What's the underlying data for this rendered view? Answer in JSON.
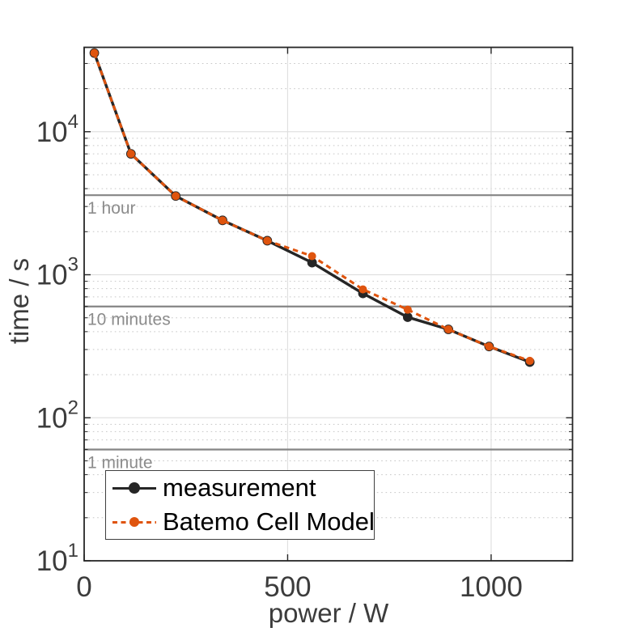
{
  "axes": {
    "xlabel": "power / W",
    "ylabel": "time / s",
    "xlim": [
      0,
      1200
    ],
    "ylim": [
      10,
      38900
    ],
    "yscale": "log",
    "x_ticks": [
      {
        "value": 0,
        "label": "0"
      },
      {
        "value": 500,
        "label": "500"
      },
      {
        "value": 1000,
        "label": "1000"
      }
    ],
    "y_ticks": [
      {
        "value": 10,
        "base": "10",
        "exp": "1"
      },
      {
        "value": 100,
        "base": "10",
        "exp": "2"
      },
      {
        "value": 1000,
        "base": "10",
        "exp": "3"
      },
      {
        "value": 10000,
        "base": "10",
        "exp": "4"
      }
    ],
    "colors": {
      "frame": "#262626",
      "tick_label": "#3c3c3c",
      "grid_major": "#e0e0e0",
      "grid_minor": "#c6c6c6",
      "reference_line": "#858585",
      "reference_label": "#8c8c8c"
    }
  },
  "chart_data": {
    "type": "line",
    "title": "",
    "xlabel": "power / W",
    "ylabel": "time / s",
    "xlim": [
      0,
      1200
    ],
    "ylim": [
      10,
      38900
    ],
    "yscale": "log",
    "grid": true,
    "legend_position": "bottom-left",
    "x": [
      25,
      115,
      225,
      340,
      450,
      560,
      685,
      795,
      895,
      995,
      1095
    ],
    "series": [
      {
        "name": "measurement",
        "color": "#262626",
        "line": "solid",
        "marker": "circle",
        "values": [
          35500,
          7000,
          3550,
          2400,
          1730,
          1215,
          740,
          505,
          415,
          315,
          245
        ]
      },
      {
        "name": "Batemo Cell Model",
        "color": "#df540e",
        "line": "dashed",
        "marker": "circle",
        "values": [
          35500,
          7000,
          3550,
          2400,
          1730,
          1350,
          790,
          570,
          415,
          315,
          250
        ]
      }
    ],
    "reference_lines": [
      {
        "value": 3600,
        "label": "1 hour"
      },
      {
        "value": 600,
        "label": "10 minutes"
      },
      {
        "value": 60,
        "label": "1 minute"
      }
    ]
  },
  "legend": {
    "items": [
      {
        "label": "measurement",
        "color": "#262626",
        "style": "solid"
      },
      {
        "label": "Batemo Cell Model",
        "color": "#df540e",
        "style": "dashed"
      }
    ]
  }
}
